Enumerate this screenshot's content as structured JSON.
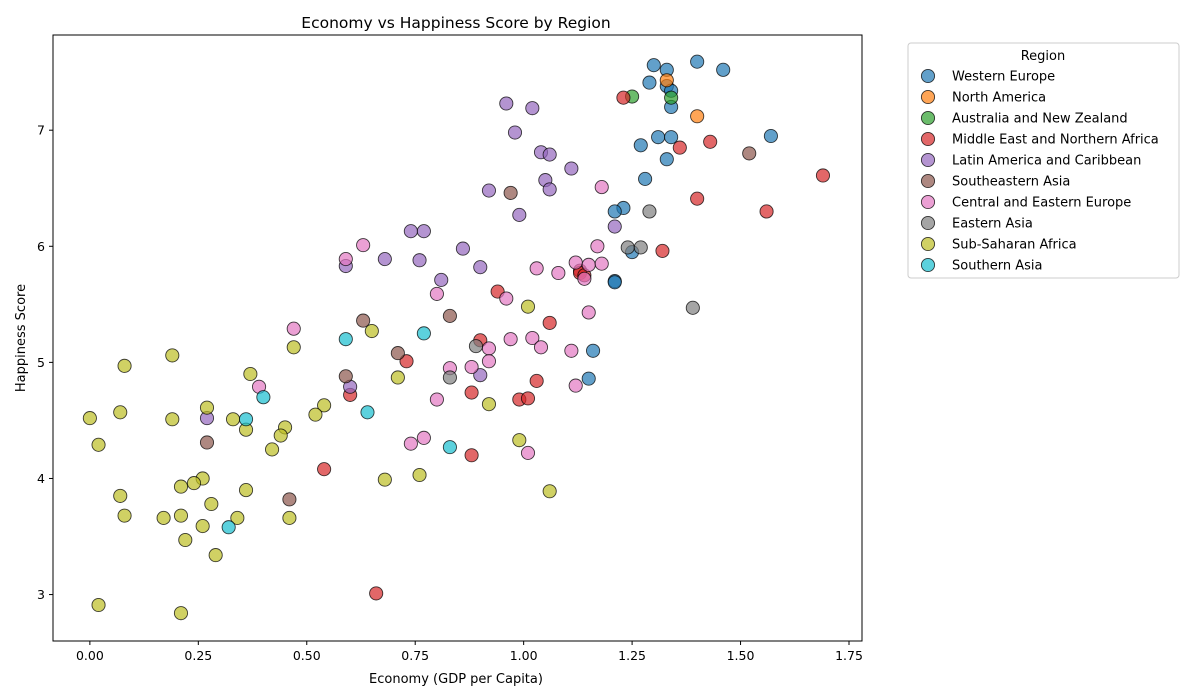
{
  "chart_data": {
    "type": "scatter",
    "title": "Economy vs Happiness Score by Region",
    "xlabel": "Economy (GDP per Capita)",
    "ylabel": "Happiness Score",
    "xlim": [
      -0.085,
      1.78
    ],
    "ylim": [
      2.6,
      7.82
    ],
    "xticks": [
      0.0,
      0.25,
      0.5,
      0.75,
      1.0,
      1.25,
      1.5,
      1.75
    ],
    "xtick_labels": [
      "0.00",
      "0.25",
      "0.50",
      "0.75",
      "1.00",
      "1.25",
      "1.50",
      "1.75"
    ],
    "yticks": [
      3,
      4,
      5,
      6,
      7
    ],
    "ytick_labels": [
      "3",
      "4",
      "5",
      "6",
      "7"
    ],
    "grid": false,
    "legend_title": "Region",
    "legend_position": "outside-right",
    "series": [
      {
        "name": "Western Europe",
        "color": "#1f77b4",
        "points": [
          [
            1.3,
            7.56
          ],
          [
            1.33,
            7.52
          ],
          [
            1.4,
            7.59
          ],
          [
            1.46,
            7.52
          ],
          [
            1.29,
            7.41
          ],
          [
            1.33,
            7.38
          ],
          [
            1.34,
            7.34
          ],
          [
            1.34,
            7.2
          ],
          [
            1.31,
            6.94
          ],
          [
            1.34,
            6.94
          ],
          [
            1.57,
            6.95
          ],
          [
            1.27,
            6.87
          ],
          [
            1.33,
            6.75
          ],
          [
            1.28,
            6.58
          ],
          [
            1.23,
            6.33
          ],
          [
            1.21,
            6.3
          ],
          [
            1.25,
            5.95
          ],
          [
            1.21,
            5.7
          ],
          [
            1.21,
            5.69
          ],
          [
            1.16,
            5.1
          ],
          [
            1.15,
            4.86
          ]
        ]
      },
      {
        "name": "North America",
        "color": "#ff7f0e",
        "points": [
          [
            1.33,
            7.43
          ],
          [
            1.4,
            7.12
          ]
        ]
      },
      {
        "name": "Australia and New Zealand",
        "color": "#2ca02c",
        "points": [
          [
            1.25,
            7.29
          ],
          [
            1.34,
            7.28
          ]
        ]
      },
      {
        "name": "Middle East and Northern Africa",
        "color": "#d62728",
        "points": [
          [
            1.23,
            7.28
          ],
          [
            1.36,
            6.85
          ],
          [
            1.43,
            6.9
          ],
          [
            1.69,
            6.61
          ],
          [
            1.4,
            6.41
          ],
          [
            1.56,
            6.3
          ],
          [
            1.32,
            5.96
          ],
          [
            1.13,
            5.79
          ],
          [
            1.13,
            5.77
          ],
          [
            1.14,
            5.75
          ],
          [
            0.94,
            5.61
          ],
          [
            1.06,
            5.34
          ],
          [
            0.9,
            5.19
          ],
          [
            0.73,
            5.01
          ],
          [
            1.03,
            4.84
          ],
          [
            0.6,
            4.72
          ],
          [
            0.88,
            4.74
          ],
          [
            0.99,
            4.68
          ],
          [
            1.01,
            4.69
          ],
          [
            0.88,
            4.2
          ],
          [
            0.54,
            4.08
          ],
          [
            0.66,
            3.01
          ]
        ]
      },
      {
        "name": "Latin America and Caribbean",
        "color": "#9467bd",
        "points": [
          [
            0.96,
            7.23
          ],
          [
            1.02,
            7.19
          ],
          [
            0.98,
            6.98
          ],
          [
            1.04,
            6.81
          ],
          [
            1.06,
            6.79
          ],
          [
            1.11,
            6.67
          ],
          [
            1.05,
            6.57
          ],
          [
            0.92,
            6.48
          ],
          [
            1.06,
            6.49
          ],
          [
            0.99,
            6.27
          ],
          [
            1.21,
            6.17
          ],
          [
            0.74,
            6.13
          ],
          [
            0.77,
            6.13
          ],
          [
            0.86,
            5.98
          ],
          [
            0.68,
            5.89
          ],
          [
            0.76,
            5.88
          ],
          [
            0.59,
            5.83
          ],
          [
            0.9,
            5.82
          ],
          [
            0.81,
            5.71
          ],
          [
            0.6,
            4.79
          ],
          [
            0.9,
            4.89
          ],
          [
            0.27,
            4.52
          ]
        ]
      },
      {
        "name": "Southeastern Asia",
        "color": "#8c564b",
        "points": [
          [
            1.52,
            6.8
          ],
          [
            0.97,
            6.46
          ],
          [
            0.63,
            5.36
          ],
          [
            0.83,
            5.4
          ],
          [
            0.71,
            5.08
          ],
          [
            0.59,
            4.88
          ],
          [
            0.27,
            4.31
          ],
          [
            0.46,
            3.82
          ]
        ]
      },
      {
        "name": "Central and Eastern Europe",
        "color": "#e377c2",
        "points": [
          [
            1.18,
            6.51
          ],
          [
            1.17,
            6.0
          ],
          [
            0.63,
            6.01
          ],
          [
            0.59,
            5.89
          ],
          [
            1.12,
            5.86
          ],
          [
            1.15,
            5.84
          ],
          [
            1.18,
            5.85
          ],
          [
            1.03,
            5.81
          ],
          [
            1.08,
            5.77
          ],
          [
            1.14,
            5.72
          ],
          [
            0.8,
            5.59
          ],
          [
            0.96,
            5.55
          ],
          [
            1.15,
            5.43
          ],
          [
            0.47,
            5.29
          ],
          [
            1.02,
            5.21
          ],
          [
            0.97,
            5.2
          ],
          [
            1.04,
            5.13
          ],
          [
            0.92,
            5.12
          ],
          [
            1.11,
            5.1
          ],
          [
            0.92,
            5.01
          ],
          [
            0.88,
            4.96
          ],
          [
            0.83,
            4.95
          ],
          [
            0.39,
            4.79
          ],
          [
            1.12,
            4.8
          ],
          [
            0.8,
            4.68
          ],
          [
            0.77,
            4.35
          ],
          [
            0.74,
            4.3
          ],
          [
            1.01,
            4.22
          ]
        ]
      },
      {
        "name": "Eastern Asia",
        "color": "#7f7f7f",
        "points": [
          [
            1.29,
            6.3
          ],
          [
            1.24,
            5.99
          ],
          [
            1.27,
            5.99
          ],
          [
            1.39,
            5.47
          ],
          [
            0.89,
            5.14
          ],
          [
            0.83,
            4.87
          ]
        ]
      },
      {
        "name": "Sub-Saharan Africa",
        "color": "#bcbd22",
        "points": [
          [
            1.01,
            5.48
          ],
          [
            0.65,
            5.27
          ],
          [
            0.47,
            5.13
          ],
          [
            0.19,
            5.06
          ],
          [
            0.08,
            4.97
          ],
          [
            0.37,
            4.9
          ],
          [
            0.71,
            4.87
          ],
          [
            0.07,
            4.57
          ],
          [
            0.54,
            4.63
          ],
          [
            0.27,
            4.61
          ],
          [
            0.52,
            4.55
          ],
          [
            0.0,
            4.52
          ],
          [
            0.19,
            4.51
          ],
          [
            0.33,
            4.51
          ],
          [
            0.45,
            4.44
          ],
          [
            0.36,
            4.42
          ],
          [
            0.92,
            4.64
          ],
          [
            0.44,
            4.37
          ],
          [
            0.99,
            4.33
          ],
          [
            0.02,
            4.29
          ],
          [
            0.42,
            4.25
          ],
          [
            0.76,
            4.03
          ],
          [
            0.26,
            4.0
          ],
          [
            0.68,
            3.99
          ],
          [
            0.24,
            3.96
          ],
          [
            0.21,
            3.93
          ],
          [
            0.36,
            3.9
          ],
          [
            1.06,
            3.89
          ],
          [
            0.07,
            3.85
          ],
          [
            0.28,
            3.78
          ],
          [
            0.08,
            3.68
          ],
          [
            0.21,
            3.68
          ],
          [
            0.17,
            3.66
          ],
          [
            0.34,
            3.66
          ],
          [
            0.46,
            3.66
          ],
          [
            0.26,
            3.59
          ],
          [
            0.22,
            3.47
          ],
          [
            0.29,
            3.34
          ],
          [
            0.02,
            2.91
          ],
          [
            0.21,
            2.84
          ]
        ]
      },
      {
        "name": "Southern Asia",
        "color": "#17becf",
        "points": [
          [
            0.77,
            5.25
          ],
          [
            0.59,
            5.2
          ],
          [
            0.4,
            4.7
          ],
          [
            0.64,
            4.57
          ],
          [
            0.36,
            4.51
          ],
          [
            0.83,
            4.27
          ],
          [
            0.32,
            3.58
          ]
        ]
      }
    ]
  }
}
